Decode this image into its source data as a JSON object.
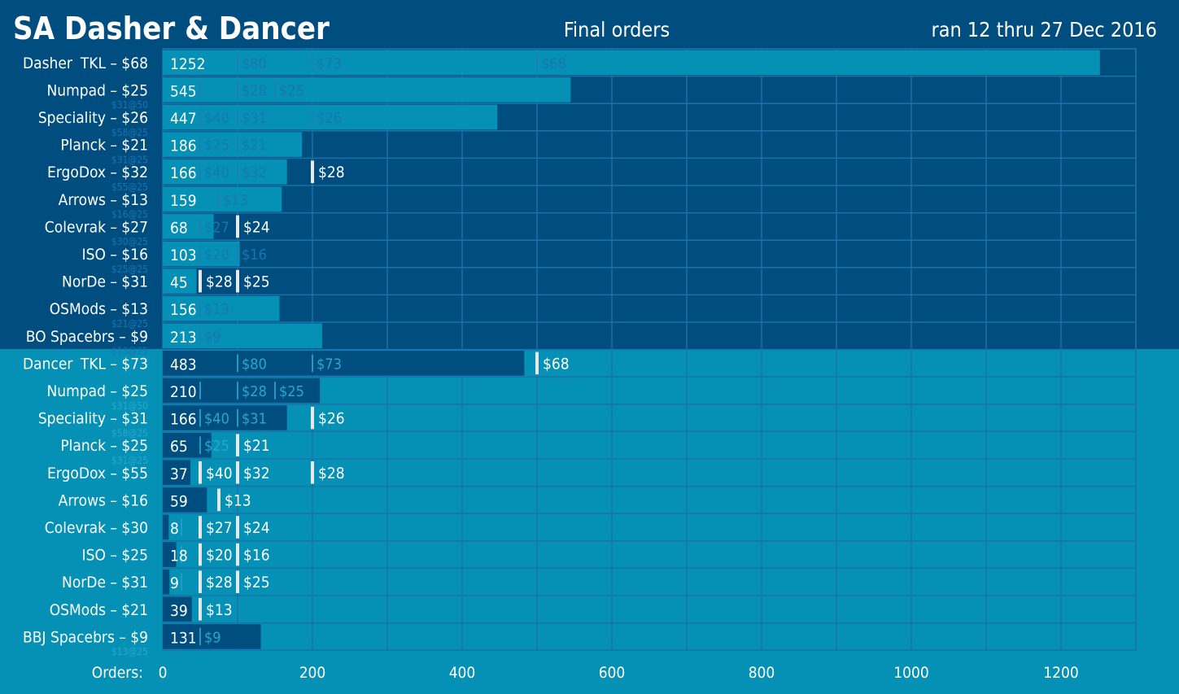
{
  "chart_data": {
    "type": "bar",
    "title": "SA Dasher & Dancer",
    "subtitle": "Final orders",
    "date_range": "ran 12 thru 27 Dec 2016",
    "xlabel": "Orders:",
    "xlim": [
      0,
      1300
    ],
    "xticks": [
      0,
      200,
      400,
      600,
      800,
      1000,
      1200
    ],
    "grid": true,
    "groups": [
      {
        "name": "Dasher",
        "items": [
          {
            "label": "TKL – $68",
            "value": 1252,
            "tiers": [
              {
                "orders": 100,
                "price": "$80",
                "hit": false
              },
              {
                "orders": 200,
                "price": "$73",
                "hit": false
              },
              {
                "orders": 500,
                "price": "$68",
                "hit": false
              }
            ]
          },
          {
            "label": "Numpad – $25",
            "value": 545,
            "sublabel": "$31@50",
            "tiers": [
              {
                "orders": 50,
                "price": "",
                "hit": false
              },
              {
                "orders": 100,
                "price": "$28",
                "hit": false
              },
              {
                "orders": 150,
                "price": "$25",
                "hit": false
              }
            ]
          },
          {
            "label": "Speciality – $26",
            "value": 447,
            "sublabel": "$58@25",
            "tiers": [
              {
                "orders": 50,
                "price": "$40",
                "hit": false
              },
              {
                "orders": 100,
                "price": "$31",
                "hit": false
              },
              {
                "orders": 200,
                "price": "$26",
                "hit": false
              }
            ]
          },
          {
            "label": "Planck – $21",
            "value": 186,
            "sublabel": "$31@25",
            "tiers": [
              {
                "orders": 50,
                "price": "$25",
                "hit": false
              },
              {
                "orders": 100,
                "price": "$21",
                "hit": false
              }
            ]
          },
          {
            "label": "ErgoDox – $32",
            "value": 166,
            "sublabel": "$55@25",
            "tiers": [
              {
                "orders": 50,
                "price": "$40",
                "hit": false
              },
              {
                "orders": 100,
                "price": "$32",
                "hit": false
              },
              {
                "orders": 200,
                "price": "$28",
                "hit": true
              }
            ]
          },
          {
            "label": "Arrows – $13",
            "value": 159,
            "sublabel": "$16@25",
            "tiers": [
              {
                "orders": 75,
                "price": "$13",
                "hit": false
              }
            ]
          },
          {
            "label": "Colevrak – $27",
            "value": 68,
            "sublabel": "$30@25",
            "tiers": [
              {
                "orders": 50,
                "price": "$27",
                "hit": false
              },
              {
                "orders": 100,
                "price": "$24",
                "hit": true
              }
            ]
          },
          {
            "label": "ISO – $16",
            "value": 103,
            "sublabel": "$25@25",
            "tiers": [
              {
                "orders": 50,
                "price": "$20",
                "hit": false
              },
              {
                "orders": 100,
                "price": "$16",
                "hit": false
              }
            ]
          },
          {
            "label": "NorDe – $31",
            "value": 45,
            "tiers": [
              {
                "orders": 50,
                "price": "$28",
                "hit": true
              },
              {
                "orders": 100,
                "price": "$25",
                "hit": true
              }
            ]
          },
          {
            "label": "OSMods – $13",
            "value": 156,
            "sublabel": "$21@25",
            "tiers": [
              {
                "orders": 50,
                "price": "$13",
                "hit": false
              }
            ]
          },
          {
            "label": "BO Spacebrs – $9",
            "value": 213,
            "sublabel": "$13@25",
            "tiers": [
              {
                "orders": 50,
                "price": "$9",
                "hit": false
              }
            ]
          }
        ]
      },
      {
        "name": "Dancer",
        "items": [
          {
            "label": "TKL – $73",
            "value": 483,
            "tiers": [
              {
                "orders": 100,
                "price": "$80",
                "hit": false
              },
              {
                "orders": 200,
                "price": "$73",
                "hit": false
              },
              {
                "orders": 500,
                "price": "$68",
                "hit": true
              }
            ]
          },
          {
            "label": "Numpad – $25",
            "value": 210,
            "sublabel": "$31@50",
            "tiers": [
              {
                "orders": 50,
                "price": "",
                "hit": false
              },
              {
                "orders": 100,
                "price": "$28",
                "hit": false
              },
              {
                "orders": 150,
                "price": "$25",
                "hit": false
              }
            ]
          },
          {
            "label": "Speciality – $31",
            "value": 166,
            "sublabel": "$58@25",
            "tiers": [
              {
                "orders": 50,
                "price": "$40",
                "hit": false
              },
              {
                "orders": 100,
                "price": "$31",
                "hit": false
              },
              {
                "orders": 200,
                "price": "$26",
                "hit": true
              }
            ]
          },
          {
            "label": "Planck – $25",
            "value": 65,
            "sublabel": "$31@25",
            "tiers": [
              {
                "orders": 50,
                "price": "$25",
                "hit": false
              },
              {
                "orders": 100,
                "price": "$21",
                "hit": true
              }
            ]
          },
          {
            "label": "ErgoDox – $55",
            "value": 37,
            "tiers": [
              {
                "orders": 50,
                "price": "$40",
                "hit": true
              },
              {
                "orders": 100,
                "price": "$32",
                "hit": true
              },
              {
                "orders": 200,
                "price": "$28",
                "hit": true
              }
            ]
          },
          {
            "label": "Arrows – $16",
            "value": 59,
            "tiers": [
              {
                "orders": 75,
                "price": "$13",
                "hit": true
              }
            ]
          },
          {
            "label": "Colevrak – $30",
            "value": 8,
            "tiers": [
              {
                "orders": 25,
                "price": "",
                "hit": false
              },
              {
                "orders": 50,
                "price": "$27",
                "hit": true
              },
              {
                "orders": 100,
                "price": "$24",
                "hit": true
              }
            ]
          },
          {
            "label": "ISO – $25",
            "value": 18,
            "tiers": [
              {
                "orders": 25,
                "price": "",
                "hit": false
              },
              {
                "orders": 50,
                "price": "$20",
                "hit": true
              },
              {
                "orders": 100,
                "price": "$16",
                "hit": true
              }
            ]
          },
          {
            "label": "NorDe – $31",
            "value": 9,
            "tiers": [
              {
                "orders": 25,
                "price": "",
                "hit": false
              },
              {
                "orders": 50,
                "price": "$28",
                "hit": true
              },
              {
                "orders": 100,
                "price": "$25",
                "hit": true
              }
            ]
          },
          {
            "label": "OSMods – $21",
            "value": 39,
            "tiers": [
              {
                "orders": 50,
                "price": "$13",
                "hit": true
              }
            ]
          },
          {
            "label": "BBJ Spacebrs – $9",
            "value": 131,
            "sublabel": "$13@25",
            "tiers": [
              {
                "orders": 50,
                "price": "$9",
                "hit": false
              }
            ]
          }
        ]
      }
    ]
  },
  "colors": {
    "dasher_background": "#004d80",
    "dancer_background": "#0590b5",
    "dasher_bar": "#0590b5",
    "dancer_bar": "#004d80",
    "grid": "#1a72a8",
    "title_text": "#ffffff",
    "label_text": "#ffffff",
    "hit_marker": "#e8e8e8"
  }
}
